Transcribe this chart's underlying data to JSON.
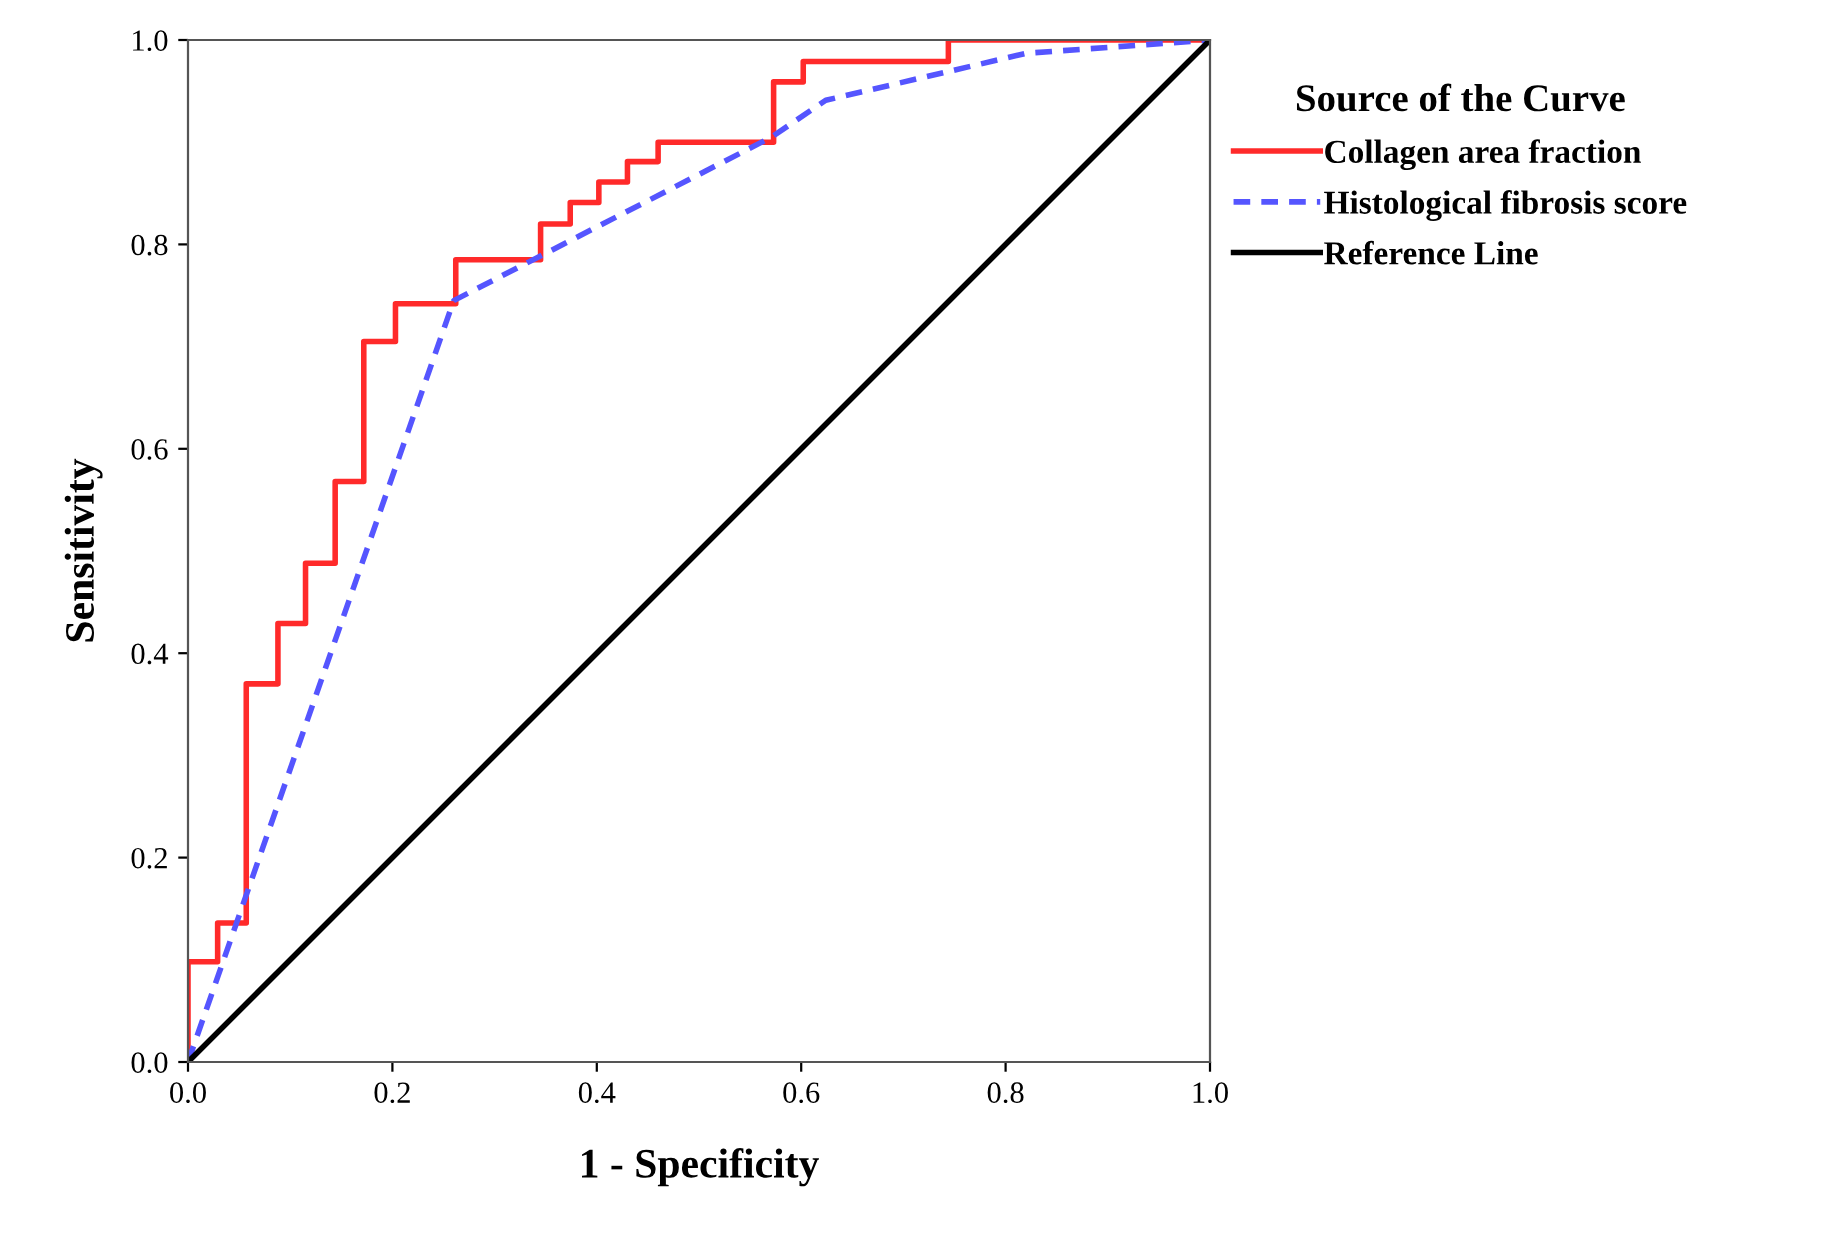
{
  "chart_data": {
    "type": "line",
    "xlabel": "1 - Specificity",
    "ylabel": "Sensitivity",
    "legend_title": "Source of the Curve",
    "legend": "right",
    "grid": false,
    "marker": "none",
    "xlim": [
      0,
      1
    ],
    "ylim": [
      0,
      1
    ],
    "xticks": [
      {
        "value": 0,
        "label": "0.0"
      },
      {
        "value": 0.2,
        "label": "0.2"
      },
      {
        "value": 0.4,
        "label": "0.4"
      },
      {
        "value": 0.6,
        "label": "0.6"
      },
      {
        "value": 0.8,
        "label": "0.8"
      },
      {
        "value": 1,
        "label": "1.0"
      }
    ],
    "yticks": [
      {
        "value": 0,
        "label": "0.0"
      },
      {
        "value": 0.2,
        "label": "0.2"
      },
      {
        "value": 0.4,
        "label": "0.4"
      },
      {
        "value": 0.6,
        "label": "0.6"
      },
      {
        "value": 0.8,
        "label": "0.8"
      },
      {
        "value": 1,
        "label": "1.0"
      }
    ],
    "series": [
      {
        "name": "Collagen area fraction",
        "color": "#ff2a2a",
        "line_style": "solid",
        "type": "step",
        "x": [
          0,
          0,
          0.029,
          0.029,
          0.057,
          0.057,
          0.088,
          0.088,
          0.115,
          0.115,
          0.144,
          0.144,
          0.172,
          0.172,
          0.203,
          0.203,
          0.262,
          0.262,
          0.345,
          0.345,
          0.374,
          0.374,
          0.402,
          0.402,
          0.43,
          0.43,
          0.46,
          0.46,
          0.573,
          0.573,
          0.602,
          0.602,
          0.744,
          0.744,
          1
        ],
        "values": [
          0,
          0.098,
          0.098,
          0.136,
          0.136,
          0.37,
          0.37,
          0.429,
          0.429,
          0.488,
          0.488,
          0.568,
          0.568,
          0.705,
          0.705,
          0.742,
          0.742,
          0.785,
          0.785,
          0.82,
          0.82,
          0.841,
          0.841,
          0.861,
          0.861,
          0.881,
          0.881,
          0.9,
          0.9,
          0.959,
          0.959,
          0.979,
          0.979,
          1,
          1
        ]
      },
      {
        "name": "Histological fibrosis score",
        "color": "#5555ff",
        "line_style": "dashed",
        "x": [
          0,
          0.26,
          0.571,
          0.624,
          0.82,
          1
        ],
        "values": [
          0,
          0.745,
          0.905,
          0.941,
          0.987,
          1
        ]
      },
      {
        "name": "Reference Line",
        "color": "#000000",
        "line_style": "solid",
        "x": [
          0,
          1
        ],
        "values": [
          0,
          1
        ]
      }
    ]
  }
}
